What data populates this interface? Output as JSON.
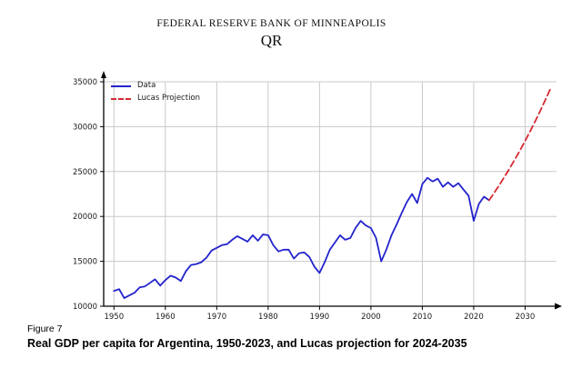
{
  "header": {
    "org": "FEDERAL RESERVE BANK OF MINNEAPOLIS",
    "publication": "QR"
  },
  "figure": {
    "label": "Figure 7",
    "caption": "Real GDP per capita for Argentina, 1950-2023, and Lucas projection for 2024-2035"
  },
  "chart_data": {
    "type": "line",
    "title": "",
    "xlabel": "",
    "ylabel": "",
    "xlim": [
      1948,
      2037
    ],
    "ylim": [
      10000,
      35000
    ],
    "x_ticks": [
      1950,
      1960,
      1970,
      1980,
      1990,
      2000,
      2010,
      2020,
      2030
    ],
    "y_ticks": [
      10000,
      15000,
      20000,
      25000,
      30000,
      35000
    ],
    "grid": true,
    "legend_position": "upper-left",
    "colors": {
      "data": "#2323cd",
      "projection": "#d62a32",
      "grid": "#c9c9c9",
      "axis": "#000000",
      "tick_text": "#1a1a1a"
    },
    "series": [
      {
        "name": "Data",
        "style": "solid",
        "color": "#2323cd",
        "x_start": 1950,
        "x_end": 2023,
        "values": [
          11700,
          11900,
          10900,
          11200,
          11500,
          12100,
          12200,
          12600,
          13000,
          12300,
          12900,
          13400,
          13200,
          12800,
          13900,
          14600,
          14700,
          14900,
          15400,
          16200,
          16500,
          16800,
          16900,
          17400,
          17800,
          17500,
          17200,
          17900,
          17300,
          18000,
          17900,
          16800,
          16100,
          16300,
          16300,
          15300,
          15900,
          16000,
          15500,
          14400,
          13700,
          14900,
          16300,
          17100,
          17900,
          17400,
          17600,
          18700,
          19500,
          19000,
          18700,
          17600,
          15000,
          16300,
          17900,
          19100,
          20400,
          21600,
          22500,
          21500,
          23600,
          24300,
          23900,
          24200,
          23300,
          23800,
          23300,
          23700,
          23000,
          22300,
          19500,
          21400,
          22200,
          21800
        ]
      },
      {
        "name": "Lucas Projection",
        "style": "dashed",
        "color": "#d62a32",
        "x_start": 2023,
        "x_end": 2035,
        "values": [
          21800,
          22640,
          23510,
          24420,
          25360,
          26340,
          27350,
          28410,
          29500,
          30640,
          31820,
          33050,
          34320
        ]
      }
    ]
  }
}
